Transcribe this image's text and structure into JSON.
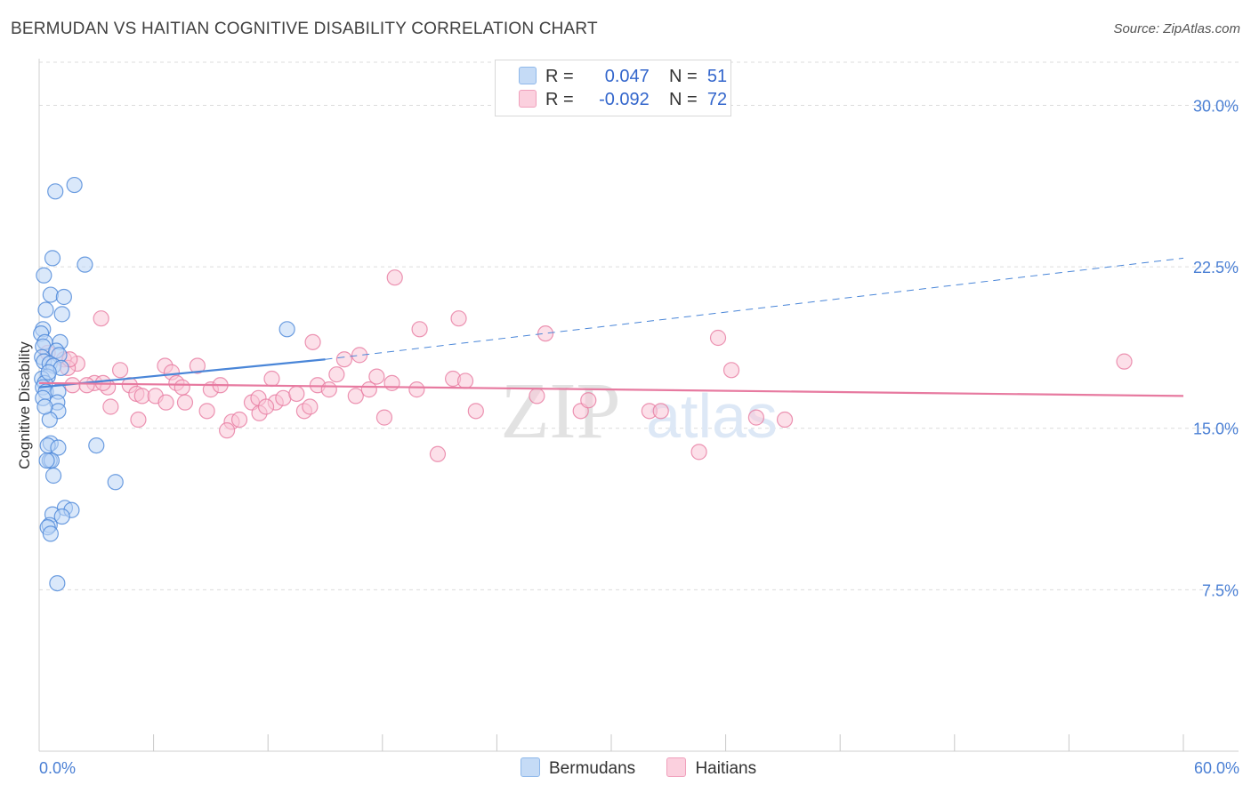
{
  "title": "BERMUDAN VS HAITIAN COGNITIVE DISABILITY CORRELATION CHART",
  "source": "Source: ZipAtlas.com",
  "watermark": {
    "zip": "ZIP",
    "atlas": "atlas"
  },
  "legend": {
    "rows": [
      {
        "r_label": "R =",
        "r_value": "0.047",
        "n_label": "N =",
        "n_value": "51",
        "color": "#8fb8ea",
        "fill": "#c5dbf6"
      },
      {
        "r_label": "R =",
        "r_value": "-0.092",
        "n_label": "N =",
        "n_value": "72",
        "color": "#f0a0bc",
        "fill": "#fbd0de"
      }
    ]
  },
  "chart_data": {
    "type": "scatter",
    "title": "BERMUDAN VS HAITIAN COGNITIVE DISABILITY CORRELATION CHART",
    "xlabel": "",
    "ylabel": "Cognitive Disability",
    "xlim": [
      0,
      60
    ],
    "ylim": [
      0,
      32
    ],
    "x_tick_labels": [
      "0.0%",
      "60.0%"
    ],
    "y_ticks": [
      7.5,
      15.0,
      22.5,
      30.0
    ],
    "y_tick_labels": [
      "7.5%",
      "15.0%",
      "22.5%",
      "30.0%"
    ],
    "grid": true,
    "series": [
      {
        "name": "Bermudans",
        "color": "#4a86d8",
        "fill": "#bcd5f5",
        "points": [
          [
            0.85,
            26.0
          ],
          [
            1.85,
            26.3
          ],
          [
            0.7,
            22.9
          ],
          [
            2.4,
            22.6
          ],
          [
            0.25,
            22.1
          ],
          [
            0.6,
            21.2
          ],
          [
            1.3,
            21.1
          ],
          [
            0.35,
            20.5
          ],
          [
            1.2,
            20.3
          ],
          [
            0.2,
            19.6
          ],
          [
            0.1,
            19.4
          ],
          [
            0.3,
            19.0
          ],
          [
            1.1,
            19.0
          ],
          [
            0.2,
            18.8
          ],
          [
            0.9,
            18.6
          ],
          [
            1.05,
            18.4
          ],
          [
            0.15,
            18.3
          ],
          [
            0.25,
            18.1
          ],
          [
            0.55,
            18.0
          ],
          [
            0.75,
            17.9
          ],
          [
            1.15,
            17.8
          ],
          [
            0.45,
            17.4
          ],
          [
            0.15,
            17.3
          ],
          [
            0.3,
            17.1
          ],
          [
            0.2,
            16.9
          ],
          [
            0.35,
            16.7
          ],
          [
            1.0,
            16.7
          ],
          [
            0.2,
            16.4
          ],
          [
            0.95,
            16.2
          ],
          [
            1.0,
            15.8
          ],
          [
            0.55,
            15.4
          ],
          [
            0.6,
            14.3
          ],
          [
            0.45,
            14.2
          ],
          [
            1.0,
            14.1
          ],
          [
            3.0,
            14.2
          ],
          [
            0.55,
            13.5
          ],
          [
            0.65,
            13.5
          ],
          [
            0.4,
            13.5
          ],
          [
            0.75,
            12.8
          ],
          [
            4.0,
            12.5
          ],
          [
            1.35,
            11.3
          ],
          [
            1.7,
            11.2
          ],
          [
            0.7,
            11.0
          ],
          [
            1.2,
            10.9
          ],
          [
            0.55,
            10.5
          ],
          [
            0.45,
            10.4
          ],
          [
            0.6,
            10.1
          ],
          [
            0.95,
            7.8
          ],
          [
            13.0,
            19.6
          ],
          [
            0.5,
            17.6
          ],
          [
            0.3,
            16.0
          ]
        ]
      },
      {
        "name": "Haitians",
        "color": "#e77aa0",
        "fill": "#f9c6d7",
        "points": [
          [
            3.25,
            20.1
          ],
          [
            0.45,
            18.5
          ],
          [
            1.3,
            18.2
          ],
          [
            2.0,
            18.0
          ],
          [
            1.5,
            17.8
          ],
          [
            4.25,
            17.7
          ],
          [
            6.6,
            17.9
          ],
          [
            6.95,
            17.6
          ],
          [
            8.3,
            17.9
          ],
          [
            1.75,
            17.0
          ],
          [
            2.9,
            17.1
          ],
          [
            3.6,
            16.9
          ],
          [
            4.75,
            17.0
          ],
          [
            3.35,
            17.1
          ],
          [
            5.1,
            16.6
          ],
          [
            5.4,
            16.5
          ],
          [
            6.1,
            16.5
          ],
          [
            7.2,
            17.1
          ],
          [
            7.5,
            16.9
          ],
          [
            7.65,
            16.2
          ],
          [
            9.0,
            16.8
          ],
          [
            9.5,
            17.0
          ],
          [
            10.1,
            15.3
          ],
          [
            9.85,
            14.9
          ],
          [
            11.15,
            16.2
          ],
          [
            11.5,
            16.4
          ],
          [
            11.55,
            15.7
          ],
          [
            12.4,
            16.2
          ],
          [
            12.2,
            17.3
          ],
          [
            12.8,
            16.4
          ],
          [
            13.5,
            16.6
          ],
          [
            13.9,
            15.8
          ],
          [
            14.35,
            19.0
          ],
          [
            14.6,
            17.0
          ],
          [
            15.2,
            16.8
          ],
          [
            15.6,
            17.5
          ],
          [
            16.0,
            18.2
          ],
          [
            16.6,
            16.5
          ],
          [
            16.8,
            18.4
          ],
          [
            17.3,
            16.8
          ],
          [
            17.7,
            17.4
          ],
          [
            18.1,
            15.5
          ],
          [
            18.5,
            17.1
          ],
          [
            19.8,
            16.8
          ],
          [
            18.65,
            22.0
          ],
          [
            19.95,
            19.6
          ],
          [
            20.9,
            13.8
          ],
          [
            21.7,
            17.3
          ],
          [
            22.0,
            20.1
          ],
          [
            22.35,
            17.2
          ],
          [
            22.9,
            15.8
          ],
          [
            26.55,
            19.4
          ],
          [
            26.1,
            16.5
          ],
          [
            28.4,
            15.8
          ],
          [
            28.8,
            16.3
          ],
          [
            32.0,
            15.8
          ],
          [
            32.6,
            15.8
          ],
          [
            34.6,
            13.9
          ],
          [
            35.6,
            19.2
          ],
          [
            36.3,
            17.7
          ],
          [
            37.6,
            15.5
          ],
          [
            39.1,
            15.4
          ],
          [
            56.9,
            18.1
          ],
          [
            1.6,
            18.2
          ],
          [
            2.5,
            17.0
          ],
          [
            3.75,
            16.0
          ],
          [
            5.2,
            15.4
          ],
          [
            6.65,
            16.2
          ],
          [
            8.8,
            15.8
          ],
          [
            10.5,
            15.4
          ],
          [
            11.9,
            16.0
          ],
          [
            14.2,
            16.0
          ]
        ]
      }
    ],
    "trend_lines": [
      {
        "series": "Bermudans",
        "solid": [
          [
            0,
            16.9
          ],
          [
            15,
            18.2
          ]
        ],
        "dashed": [
          [
            15,
            18.2
          ],
          [
            60,
            22.9
          ]
        ]
      },
      {
        "series": "Haitians",
        "solid": [
          [
            0,
            17.1
          ],
          [
            60,
            16.5
          ]
        ]
      }
    ]
  }
}
